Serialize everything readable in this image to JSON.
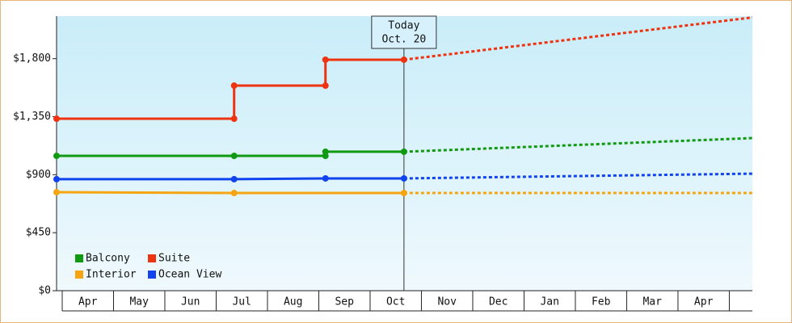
{
  "chart_data": {
    "type": "line",
    "xlim": [
      -0.11,
      13.45
    ],
    "ylim": [
      0,
      2130
    ],
    "xticks": [
      {
        "value": 0.5,
        "label": "Apr"
      },
      {
        "value": 1.5,
        "label": "May"
      },
      {
        "value": 2.5,
        "label": "Jun"
      },
      {
        "value": 3.5,
        "label": "Jul"
      },
      {
        "value": 4.5,
        "label": "Aug"
      },
      {
        "value": 5.5,
        "label": "Sep"
      },
      {
        "value": 6.5,
        "label": "Oct"
      },
      {
        "value": 7.5,
        "label": "Nov"
      },
      {
        "value": 8.5,
        "label": "Dec"
      },
      {
        "value": 9.5,
        "label": "Jan"
      },
      {
        "value": 10.5,
        "label": "Feb"
      },
      {
        "value": 11.5,
        "label": "Mar"
      },
      {
        "value": 12.5,
        "label": "Apr"
      }
    ],
    "yticks": [
      {
        "value": 0,
        "label": "$0"
      },
      {
        "value": 450,
        "label": "$450"
      },
      {
        "value": 900,
        "label": "$900"
      },
      {
        "value": 1350,
        "label": "$1,350"
      },
      {
        "value": 1800,
        "label": "$1,800"
      }
    ],
    "today": {
      "label": [
        "Today",
        "Oct. 20"
      ],
      "x": 6.66
    },
    "legend": "bottom-left",
    "series": [
      {
        "name": "Balcony",
        "color": "#119911",
        "x": [
          -0.11,
          3.35,
          5.13,
          5.13,
          6.66,
          13.45
        ],
        "values": [
          1046,
          1046,
          1046,
          1078,
          1078,
          1184
        ]
      },
      {
        "name": "Suite",
        "color": "#ee3311",
        "x": [
          -0.11,
          3.35,
          3.35,
          5.13,
          5.13,
          6.66,
          13.45
        ],
        "values": [
          1334,
          1334,
          1591,
          1591,
          1792,
          1792,
          2120
        ]
      },
      {
        "name": "Interior",
        "color": "#f5a511",
        "x": [
          -0.11,
          3.35,
          6.66,
          13.45
        ],
        "values": [
          764,
          758,
          758,
          758
        ]
      },
      {
        "name": "Ocean View",
        "color": "#1144ee",
        "x": [
          -0.11,
          3.35,
          5.13,
          6.66,
          13.45
        ],
        "values": [
          865,
          865,
          871,
          871,
          908
        ]
      }
    ]
  }
}
